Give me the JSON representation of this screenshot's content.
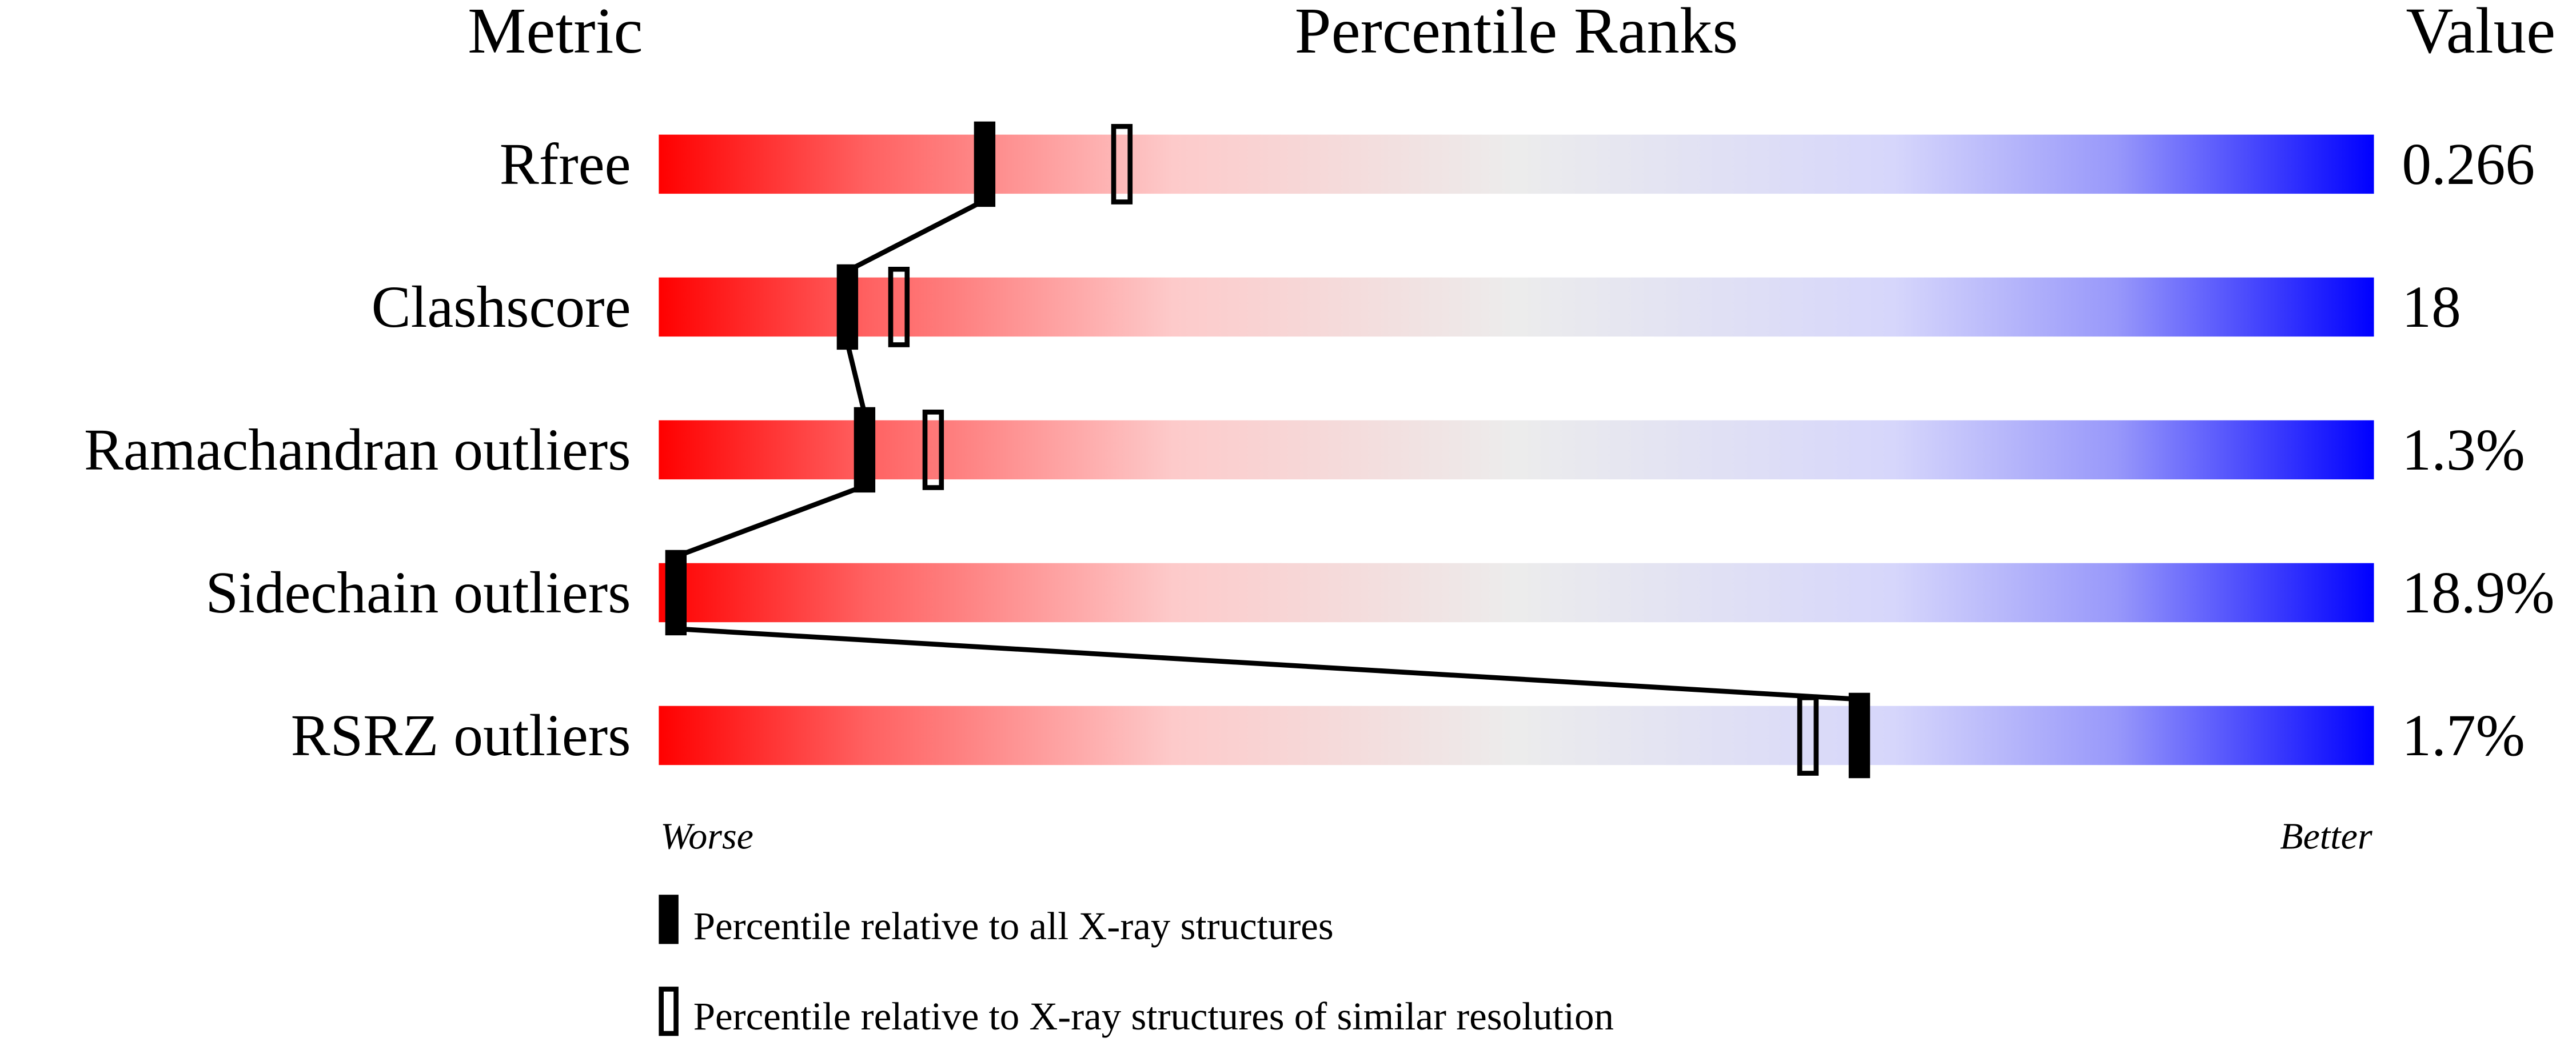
{
  "chart_data": {
    "type": "percentile-slider",
    "header": {
      "metric": "Metric",
      "ranks": "Percentile Ranks",
      "value": "Value"
    },
    "categories": [
      "Rfree",
      "Clashscore",
      "Ramachandran outliers",
      "Sidechain outliers",
      "RSRZ outliers"
    ],
    "metric_values": [
      "0.266",
      "18",
      "1.3%",
      "18.9%",
      "1.7%"
    ],
    "xlim": [
      0,
      100
    ],
    "worse_label": "Worse",
    "better_label": "Better",
    "series": [
      {
        "name": "Percentile relative to all X-ray structures",
        "color": "#000000",
        "values": [
          19,
          11,
          12,
          1,
          70
        ]
      },
      {
        "name": "Percentile relative to X-ray structures of similar resolution",
        "color": "#000000",
        "values": [
          27,
          14,
          16,
          null,
          67
        ]
      }
    ]
  }
}
